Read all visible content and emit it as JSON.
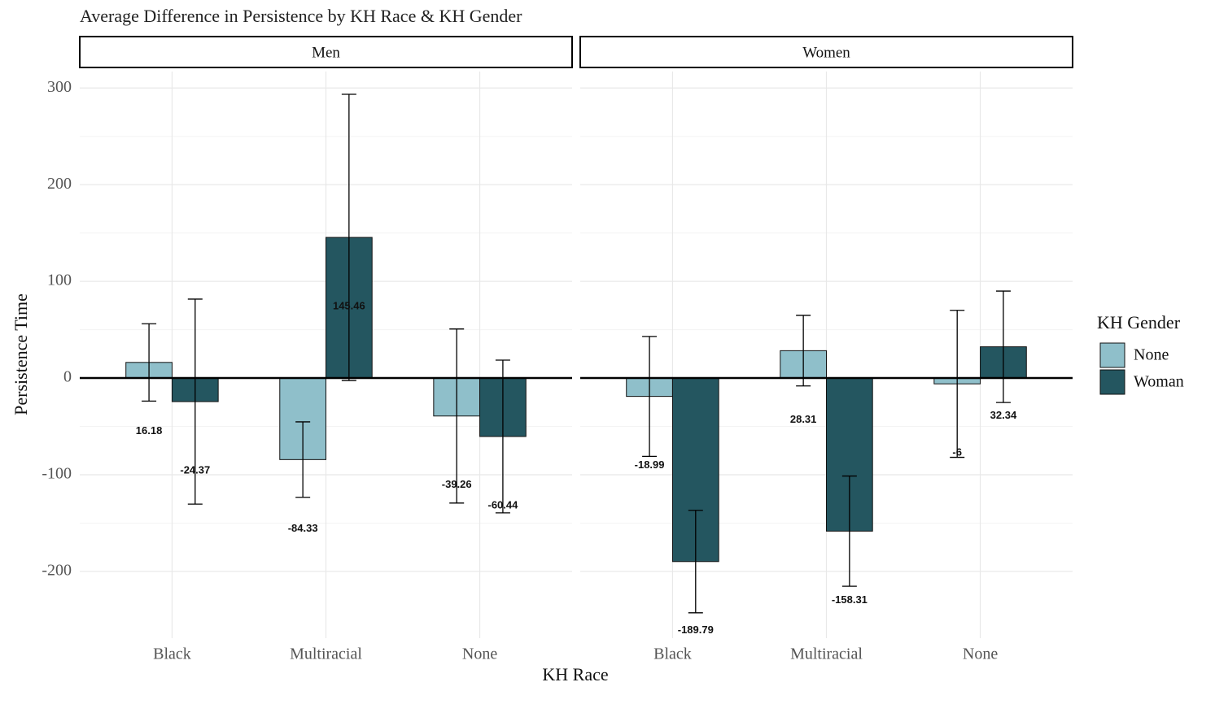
{
  "chart_data": {
    "type": "bar",
    "title": "Average Difference in Persistence by KH Race & KH Gender",
    "x_label": "KH Race",
    "y_label": "Persistence Time",
    "legend_title": "KH Gender",
    "categories": [
      "Black",
      "Multiracial",
      "None"
    ],
    "ylim": [
      -269,
      317
    ],
    "yticks": [
      -200,
      -100,
      0,
      100,
      200,
      300
    ],
    "grid": true,
    "facets": [
      {
        "label": "Men",
        "series": [
          {
            "name": "None",
            "color": "#8fbfca",
            "values": [
              16.18,
              -84.33,
              -39.26
            ],
            "errors": [
              40,
              39,
              90
            ]
          },
          {
            "name": "Woman",
            "color": "#245660",
            "values": [
              -24.37,
              145.46,
              -60.44
            ],
            "errors": [
              106,
              148,
              79
            ]
          }
        ]
      },
      {
        "label": "Women",
        "series": [
          {
            "name": "None",
            "color": "#8fbfca",
            "values": [
              -18.99,
              28.31,
              -6
            ],
            "errors": [
              62,
              36.5,
              76
            ]
          },
          {
            "name": "Woman",
            "color": "#245660",
            "values": [
              -189.79,
              -158.31,
              32.34
            ],
            "errors": [
              53,
              57,
              57.6
            ]
          }
        ]
      }
    ]
  }
}
